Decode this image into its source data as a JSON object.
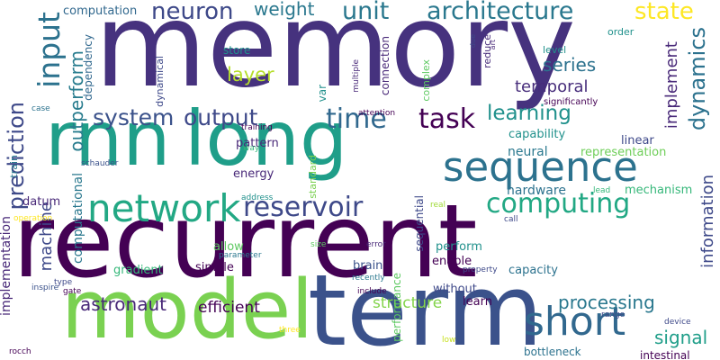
{
  "words": [
    {
      "text": "memory",
      "color": "#46327e"
    },
    {
      "text": "recurrent",
      "color": "#440154"
    },
    {
      "text": "rnn",
      "color": "#1f9e89"
    },
    {
      "text": "long",
      "color": "#1f9e89"
    },
    {
      "text": "term",
      "color": "#3b528b"
    },
    {
      "text": "model",
      "color": "#7ad151"
    },
    {
      "text": "sequence",
      "color": "#2c728e"
    },
    {
      "text": "network",
      "color": "#22a884"
    },
    {
      "text": "short",
      "color": "#31688e"
    },
    {
      "text": "input",
      "color": "#2c728e"
    },
    {
      "text": "time",
      "color": "#31688e"
    },
    {
      "text": "task",
      "color": "#440154"
    },
    {
      "text": "reservoir",
      "color": "#3e4989"
    },
    {
      "text": "computing",
      "color": "#22a884"
    },
    {
      "text": "architecture",
      "color": "#2a788e"
    },
    {
      "text": "unit",
      "color": "#2a788e"
    },
    {
      "text": "state",
      "color": "#fde725"
    },
    {
      "text": "neuron",
      "color": "#3e4989"
    },
    {
      "text": "weight",
      "color": "#2a788e"
    },
    {
      "text": "system",
      "color": "#3b528b"
    },
    {
      "text": "output",
      "color": "#3e4989"
    },
    {
      "text": "learning",
      "color": "#21918c"
    },
    {
      "text": "dynamics",
      "color": "#2c728e"
    },
    {
      "text": "prediction",
      "color": "#3e4989"
    },
    {
      "text": "layer",
      "color": "#b5de2b"
    },
    {
      "text": "series",
      "color": "#2c728e"
    },
    {
      "text": "temporal",
      "color": "#472d7b"
    },
    {
      "text": "implement",
      "color": "#482878"
    },
    {
      "text": "outperform",
      "color": "#287c8e"
    },
    {
      "text": "processing",
      "color": "#2a788e"
    },
    {
      "text": "astronaut",
      "color": "#482878"
    },
    {
      "text": "signal",
      "color": "#1f9e89"
    },
    {
      "text": "information",
      "color": "#3e4989"
    },
    {
      "text": "machine",
      "color": "#3e4989"
    },
    {
      "text": "implementation",
      "color": "#482878"
    },
    {
      "text": "structure",
      "color": "#84d44b"
    },
    {
      "text": "efficient",
      "color": "#440154"
    },
    {
      "text": "computation",
      "color": "#31688e"
    },
    {
      "text": "dependency",
      "color": "#31688e"
    },
    {
      "text": "computational",
      "color": "#2a788e"
    },
    {
      "text": "neural",
      "color": "#2a788e"
    },
    {
      "text": "hardware",
      "color": "#2c728e"
    },
    {
      "text": "representation",
      "color": "#6ece58"
    },
    {
      "text": "mechanism",
      "color": "#35b779"
    },
    {
      "text": "capability",
      "color": "#21918c"
    },
    {
      "text": "linear",
      "color": "#3e4989"
    },
    {
      "text": "gradient",
      "color": "#35b779"
    },
    {
      "text": "simple",
      "color": "#440154"
    },
    {
      "text": "perform",
      "color": "#21918c"
    },
    {
      "text": "enable",
      "color": "#440154"
    },
    {
      "text": "without",
      "color": "#3e4989"
    },
    {
      "text": "learn",
      "color": "#440154"
    },
    {
      "text": "capacity",
      "color": "#2c728e"
    },
    {
      "text": "brain",
      "color": "#3b528b"
    },
    {
      "text": "performance",
      "color": "#5ec962"
    },
    {
      "text": "sequential",
      "color": "#3e4989"
    },
    {
      "text": "pattern",
      "color": "#482878"
    },
    {
      "text": "energy",
      "color": "#482878"
    },
    {
      "text": "datum",
      "color": "#482878"
    },
    {
      "text": "train",
      "color": "#2a788e"
    },
    {
      "text": "allow",
      "color": "#5ec962"
    },
    {
      "text": "var",
      "color": "#21918c"
    },
    {
      "text": "standard",
      "color": "#7ad151"
    },
    {
      "text": "connection",
      "color": "#482878"
    },
    {
      "text": "complex",
      "color": "#5ec962"
    },
    {
      "text": "store",
      "color": "#21918c"
    },
    {
      "text": "dynamical",
      "color": "#3e4989"
    },
    {
      "text": "level",
      "color": "#21918c"
    },
    {
      "text": "order",
      "color": "#21918c"
    },
    {
      "text": "reduce",
      "color": "#472d7b"
    },
    {
      "text": "significantly",
      "color": "#440154"
    },
    {
      "text": "multiple",
      "color": "#482878"
    },
    {
      "text": "art",
      "color": "#482878"
    },
    {
      "text": "due",
      "color": "#3e4989"
    },
    {
      "text": "attention",
      "color": "#440154"
    },
    {
      "text": "training",
      "color": "#440154"
    },
    {
      "text": "way",
      "color": "#35b779"
    },
    {
      "text": "schauder",
      "color": "#3b528b"
    },
    {
      "text": "case",
      "color": "#2c728e"
    },
    {
      "text": "address",
      "color": "#21918c"
    },
    {
      "text": "operation",
      "color": "#fde725"
    },
    {
      "text": "real",
      "color": "#a0da39"
    },
    {
      "text": "lead",
      "color": "#35b779"
    },
    {
      "text": "call",
      "color": "#3e4989"
    },
    {
      "text": "size",
      "color": "#5ec962"
    },
    {
      "text": "error",
      "color": "#482878"
    },
    {
      "text": "parameter",
      "color": "#2a788e"
    },
    {
      "text": "type",
      "color": "#3e4989"
    },
    {
      "text": "inspire",
      "color": "#3b528b"
    },
    {
      "text": "gate",
      "color": "#440154"
    },
    {
      "text": "recently",
      "color": "#2a788e"
    },
    {
      "text": "include",
      "color": "#440154"
    },
    {
      "text": "property",
      "color": "#3e4989"
    },
    {
      "text": "range",
      "color": "#3e4989"
    },
    {
      "text": "device",
      "color": "#3e4989"
    },
    {
      "text": "three",
      "color": "#fde725"
    },
    {
      "text": "low",
      "color": "#c8e020"
    },
    {
      "text": "bottleneck",
      "color": "#2c728e"
    },
    {
      "text": "intestinal",
      "color": "#440154"
    },
    {
      "text": "rocch",
      "color": "#440154"
    }
  ]
}
